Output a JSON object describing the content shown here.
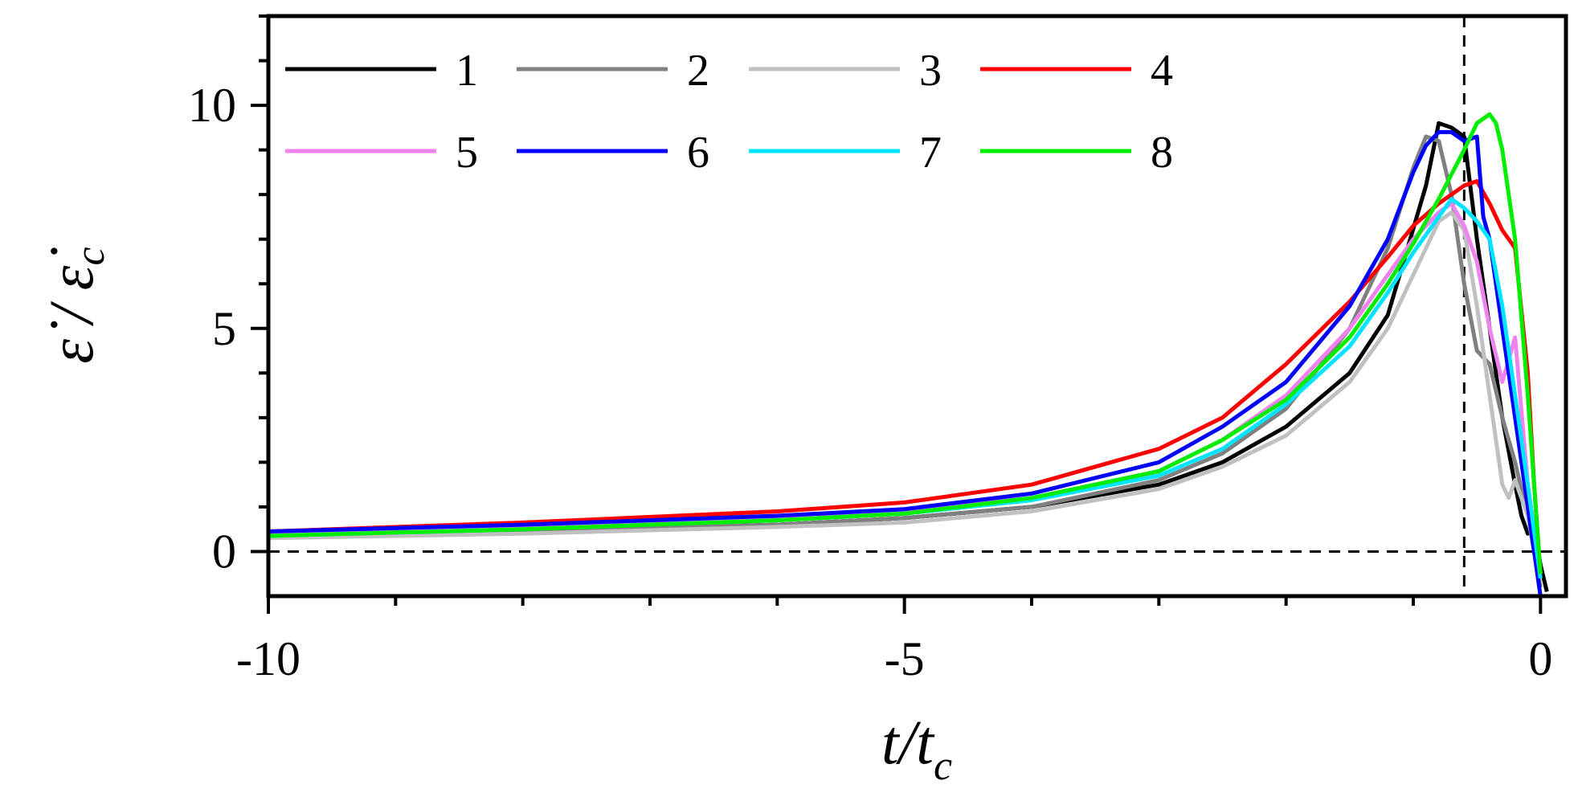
{
  "chart_data": {
    "type": "line",
    "xlabel": {
      "main": "t/t",
      "sub": "c"
    },
    "ylabel": {
      "main": "ε̇ / ε̇",
      "sub": "c"
    },
    "xlim": [
      -10,
      0.2
    ],
    "ylim": [
      -1,
      12
    ],
    "x_ticks": [
      -10,
      -5,
      0
    ],
    "x_tick_labels": [
      "-10",
      "-5",
      "0"
    ],
    "y_ticks": [
      0,
      5,
      10
    ],
    "y_tick_labels": [
      "0",
      "5",
      "10"
    ],
    "reference_lines": {
      "horizontal_y": 0,
      "vertical_x": -0.6
    },
    "legend_position": "top-left, 2 rows x 4 columns",
    "series": [
      {
        "name": "1",
        "color": "#000000",
        "x": [
          -10,
          -8,
          -6,
          -5,
          -4,
          -3,
          -2.5,
          -2,
          -1.5,
          -1.2,
          -0.9,
          -0.8,
          -0.7,
          -0.6,
          -0.5,
          -0.4,
          -0.3,
          -0.2,
          -0.15,
          -0.1,
          -0.05,
          0.0,
          0.05
        ],
        "y": [
          0.35,
          0.45,
          0.6,
          0.75,
          1.0,
          1.5,
          2.0,
          2.8,
          4.0,
          5.3,
          8.2,
          9.6,
          9.5,
          9.3,
          7.0,
          5.0,
          3.0,
          1.5,
          0.8,
          0.4,
          0.6,
          -0.3,
          -0.9
        ]
      },
      {
        "name": "2",
        "color": "#808080",
        "x": [
          -10,
          -8,
          -6,
          -5,
          -4,
          -3,
          -2.5,
          -2,
          -1.5,
          -1.2,
          -1.0,
          -0.9,
          -0.8,
          -0.7,
          -0.6,
          -0.5,
          -0.4,
          -0.3,
          -0.2,
          -0.1,
          0.0
        ],
        "y": [
          0.35,
          0.45,
          0.6,
          0.75,
          1.0,
          1.6,
          2.2,
          3.2,
          5.0,
          6.8,
          8.6,
          9.3,
          9.2,
          8.0,
          6.0,
          4.5,
          4.2,
          3.0,
          2.0,
          0.8,
          -0.8
        ]
      },
      {
        "name": "3",
        "color": "#c0c0c0",
        "x": [
          -10,
          -8,
          -6,
          -5,
          -4,
          -3,
          -2.5,
          -2,
          -1.5,
          -1.2,
          -1.0,
          -0.8,
          -0.7,
          -0.6,
          -0.5,
          -0.4,
          -0.3,
          -0.25,
          -0.2,
          -0.1,
          0.0
        ],
        "y": [
          0.3,
          0.4,
          0.55,
          0.65,
          0.9,
          1.4,
          1.9,
          2.6,
          3.8,
          5.0,
          6.2,
          7.4,
          7.6,
          7.2,
          5.5,
          3.5,
          1.5,
          1.2,
          1.6,
          0.8,
          -0.6
        ]
      },
      {
        "name": "4",
        "color": "#ff0000",
        "x": [
          -10,
          -8,
          -6,
          -5,
          -4,
          -3,
          -2.5,
          -2,
          -1.5,
          -1.2,
          -1.0,
          -0.8,
          -0.6,
          -0.5,
          -0.4,
          -0.3,
          -0.2,
          -0.1,
          -0.05,
          0.0
        ],
        "y": [
          0.45,
          0.65,
          0.9,
          1.1,
          1.5,
          2.3,
          3.0,
          4.2,
          5.6,
          6.6,
          7.3,
          7.8,
          8.2,
          8.3,
          7.8,
          7.2,
          6.8,
          4.0,
          1.5,
          -0.5
        ]
      },
      {
        "name": "5",
        "color": "#ee82ee",
        "x": [
          -10,
          -8,
          -6,
          -5,
          -4,
          -3,
          -2.5,
          -2,
          -1.5,
          -1.2,
          -1.0,
          -0.8,
          -0.7,
          -0.6,
          -0.5,
          -0.4,
          -0.3,
          -0.2,
          -0.1,
          0.0
        ],
        "y": [
          0.4,
          0.55,
          0.75,
          0.9,
          1.2,
          1.8,
          2.5,
          3.5,
          5.0,
          6.2,
          7.0,
          7.6,
          7.8,
          7.3,
          6.5,
          5.0,
          3.8,
          4.8,
          1.5,
          -0.5
        ]
      },
      {
        "name": "6",
        "color": "#0000ff",
        "x": [
          -10,
          -8,
          -6,
          -5,
          -4,
          -3,
          -2.5,
          -2,
          -1.5,
          -1.2,
          -1.0,
          -0.9,
          -0.8,
          -0.7,
          -0.6,
          -0.5,
          -0.45,
          -0.4,
          -0.3,
          -0.2,
          -0.1,
          0.0
        ],
        "y": [
          0.45,
          0.6,
          0.8,
          0.95,
          1.3,
          2.0,
          2.8,
          3.8,
          5.5,
          7.0,
          8.5,
          9.1,
          9.4,
          9.4,
          9.2,
          9.3,
          7.5,
          7.0,
          5.0,
          3.0,
          1.0,
          -1.0
        ]
      },
      {
        "name": "7",
        "color": "#00e5ff",
        "x": [
          -10,
          -8,
          -6,
          -5,
          -4,
          -3,
          -2.5,
          -2,
          -1.5,
          -1.2,
          -1.0,
          -0.8,
          -0.7,
          -0.6,
          -0.5,
          -0.4,
          -0.3,
          -0.2,
          -0.1,
          0.0
        ],
        "y": [
          0.35,
          0.5,
          0.7,
          0.85,
          1.15,
          1.7,
          2.3,
          3.3,
          4.6,
          5.8,
          6.7,
          7.5,
          7.9,
          7.7,
          7.4,
          7.0,
          5.5,
          3.5,
          1.5,
          -0.6
        ]
      },
      {
        "name": "8",
        "color": "#00ee00",
        "x": [
          -10,
          -8,
          -6,
          -5,
          -4,
          -3,
          -2.5,
          -2,
          -1.5,
          -1.2,
          -1.0,
          -0.8,
          -0.6,
          -0.5,
          -0.4,
          -0.35,
          -0.3,
          -0.2,
          -0.1,
          -0.05,
          0.0
        ],
        "y": [
          0.35,
          0.5,
          0.7,
          0.85,
          1.2,
          1.8,
          2.5,
          3.4,
          4.8,
          6.0,
          6.9,
          7.9,
          9.0,
          9.6,
          9.8,
          9.6,
          9.0,
          7.0,
          3.5,
          1.5,
          -0.5
        ]
      }
    ]
  }
}
